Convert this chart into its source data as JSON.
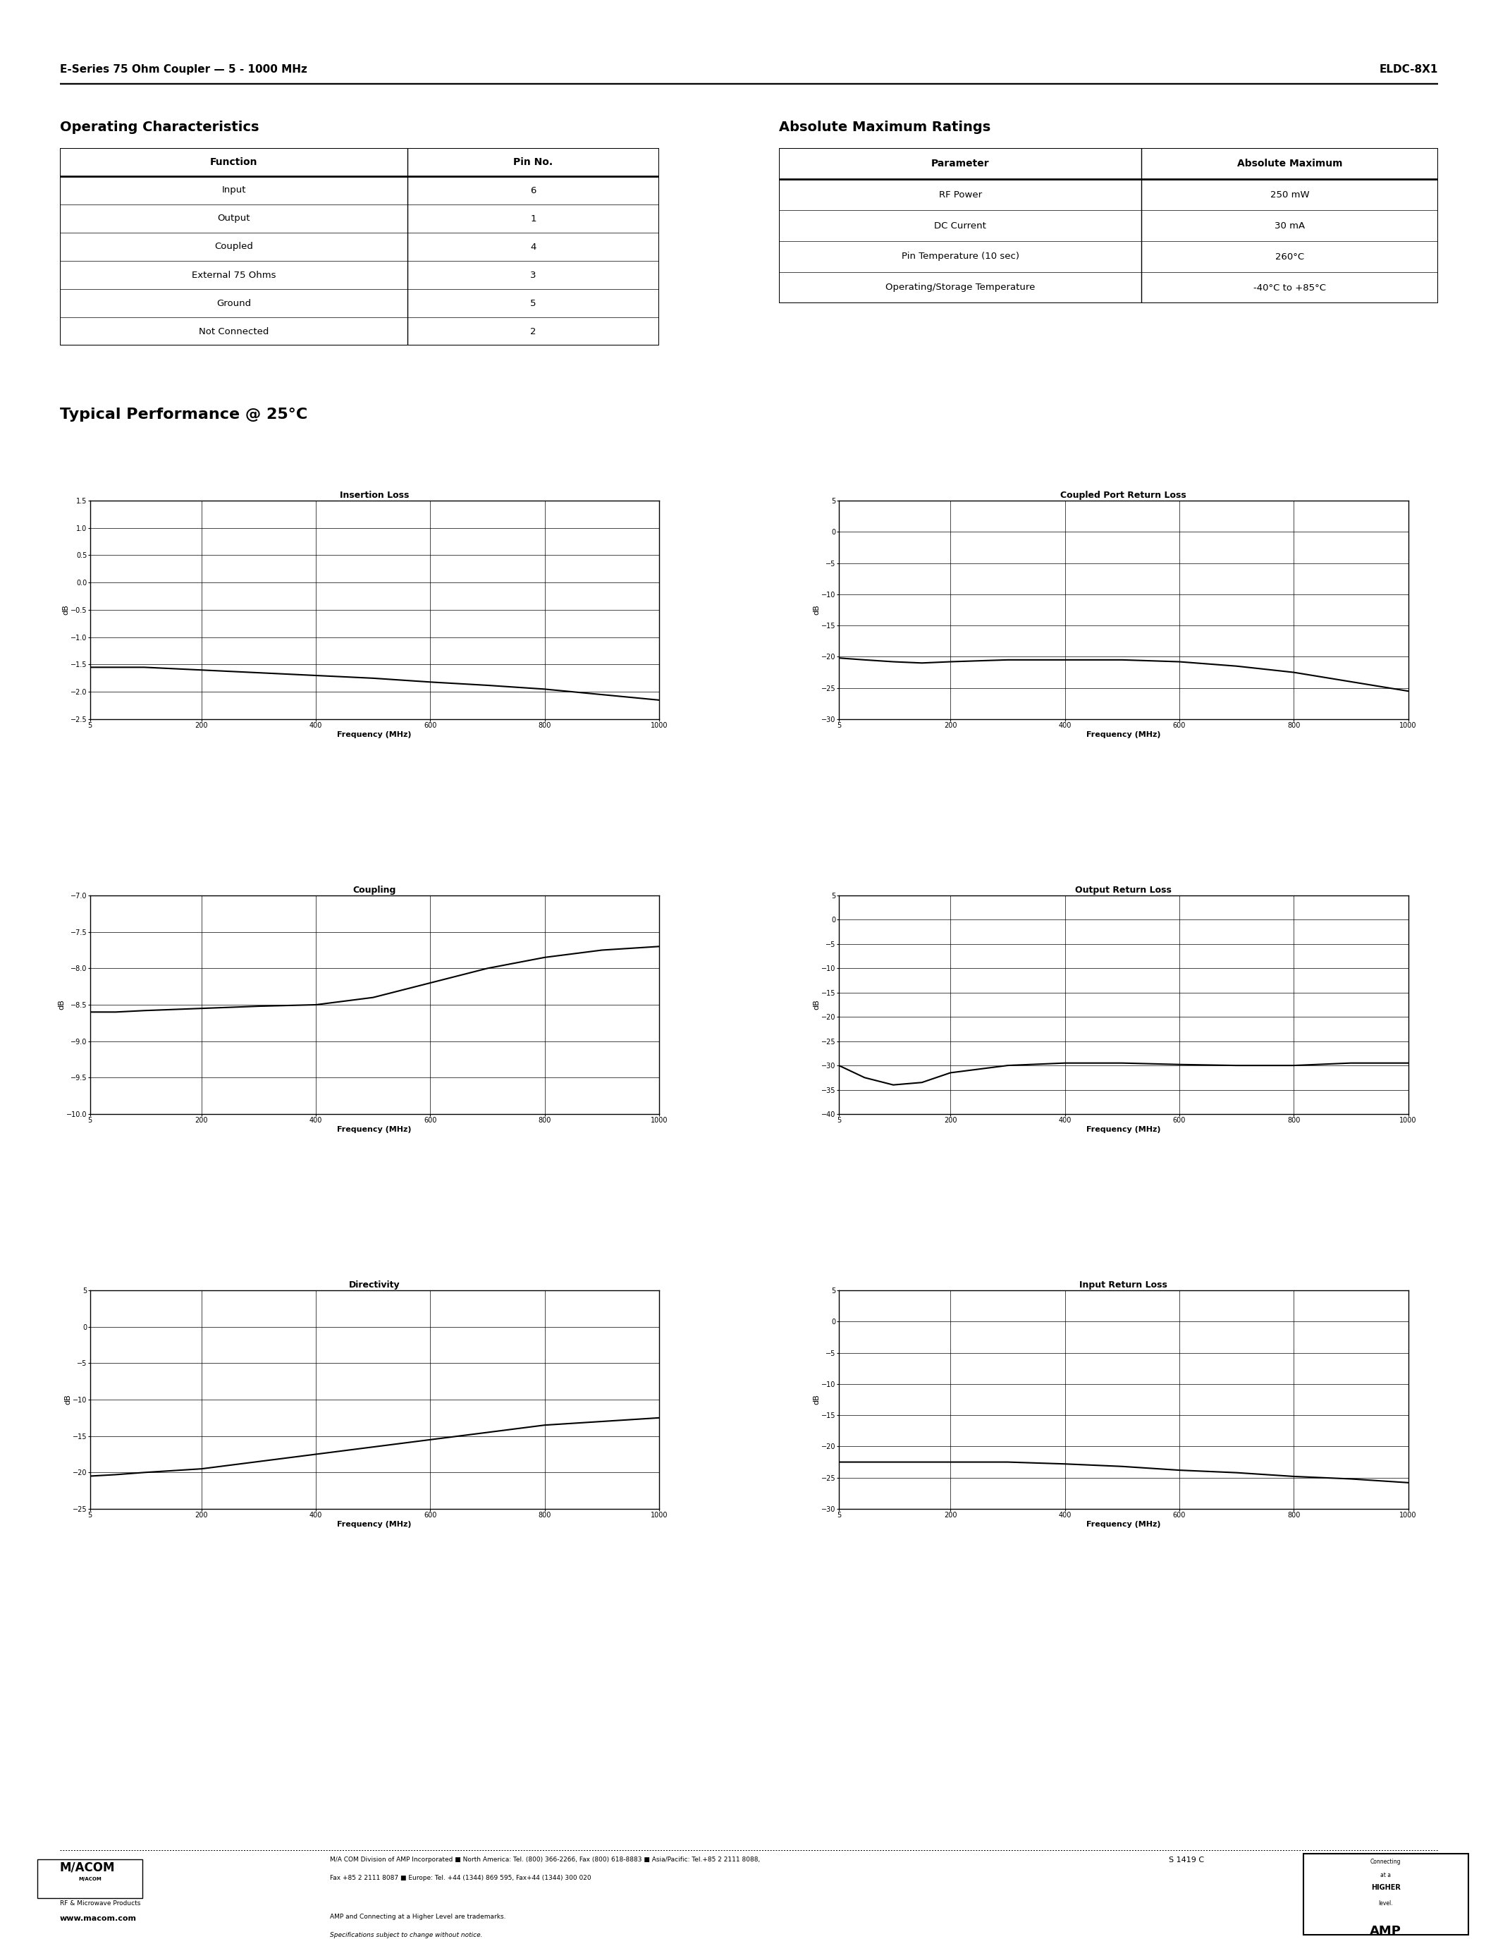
{
  "page_title_left": "E-Series 75 Ohm Coupler — 5 - 1000 MHz",
  "page_title_right": "ELDC-8X1",
  "section1_title": "Operating Characteristics",
  "section2_title": "Absolute Maximum Ratings",
  "typical_perf_title": "Typical Performance @ 25°C",
  "op_char_headers": [
    "Function",
    "Pin No."
  ],
  "op_char_rows": [
    [
      "Input",
      "6"
    ],
    [
      "Output",
      "1"
    ],
    [
      "Coupled",
      "4"
    ],
    [
      "External 75 Ohms",
      "3"
    ],
    [
      "Ground",
      "5"
    ],
    [
      "Not Connected",
      "2"
    ]
  ],
  "abs_max_headers": [
    "Parameter",
    "Absolute Maximum"
  ],
  "abs_max_rows": [
    [
      "RF Power",
      "250 mW"
    ],
    [
      "DC Current",
      "30 mA"
    ],
    [
      "Pin Temperature (10 sec)",
      "260°C"
    ],
    [
      "Operating/Storage Temperature",
      "-40°C to +85°C"
    ]
  ],
  "graphs": [
    {
      "title": "Insertion Loss",
      "ylabel": "dB",
      "xlabel": "Frequency (MHz)",
      "xlim": [
        5,
        1000
      ],
      "ylim": [
        -2.5,
        1.5
      ],
      "yticks": [
        -2.5,
        -2.0,
        -1.5,
        -1.0,
        -0.5,
        0.0,
        0.5,
        1.0,
        1.5
      ],
      "xticks": [
        5,
        200,
        400,
        600,
        800,
        1000
      ],
      "curve_x": [
        5,
        50,
        100,
        200,
        300,
        400,
        500,
        600,
        700,
        800,
        900,
        1000
      ],
      "curve_y": [
        -1.55,
        -1.55,
        -1.55,
        -1.6,
        -1.65,
        -1.7,
        -1.75,
        -1.82,
        -1.88,
        -1.95,
        -2.05,
        -2.15
      ]
    },
    {
      "title": "Coupled Port Return Loss",
      "ylabel": "dB",
      "xlabel": "Frequency (MHz)",
      "xlim": [
        5,
        1000
      ],
      "ylim": [
        -30.0,
        5.0
      ],
      "yticks": [
        -30.0,
        -25.0,
        -20.0,
        -15.0,
        -10.0,
        -5.0,
        0.0,
        5.0
      ],
      "xticks": [
        5,
        200,
        400,
        600,
        800,
        1000
      ],
      "curve_x": [
        5,
        50,
        100,
        150,
        200,
        300,
        400,
        500,
        600,
        700,
        800,
        900,
        1000
      ],
      "curve_y": [
        -20.2,
        -20.5,
        -20.8,
        -21.0,
        -20.8,
        -20.5,
        -20.5,
        -20.5,
        -20.8,
        -21.5,
        -22.5,
        -24.0,
        -25.5
      ]
    },
    {
      "title": "Coupling",
      "ylabel": "dB",
      "xlabel": "Frequency (MHz)",
      "xlim": [
        5,
        1000
      ],
      "ylim": [
        -10.0,
        -7.0
      ],
      "yticks": [
        -10.0,
        -9.5,
        -9.0,
        -8.5,
        -8.0,
        -7.5,
        -7.0
      ],
      "xticks": [
        5,
        200,
        400,
        600,
        800,
        1000
      ],
      "curve_x": [
        5,
        50,
        100,
        200,
        300,
        400,
        500,
        600,
        700,
        800,
        900,
        1000
      ],
      "curve_y": [
        -8.6,
        -8.6,
        -8.58,
        -8.55,
        -8.52,
        -8.5,
        -8.4,
        -8.2,
        -8.0,
        -7.85,
        -7.75,
        -7.7
      ]
    },
    {
      "title": "Output Return Loss",
      "ylabel": "dB",
      "xlabel": "Frequency (MHz)",
      "xlim": [
        5,
        1000
      ],
      "ylim": [
        -40.0,
        5.0
      ],
      "yticks": [
        -40.0,
        -35.0,
        -30.0,
        -25.0,
        -20.0,
        -15.0,
        -10.0,
        -5.0,
        0.0,
        5.0
      ],
      "xticks": [
        5,
        200,
        400,
        600,
        800,
        1000
      ],
      "curve_x": [
        5,
        50,
        100,
        150,
        200,
        300,
        400,
        500,
        600,
        700,
        800,
        900,
        1000
      ],
      "curve_y": [
        -30.0,
        -32.5,
        -34.0,
        -33.5,
        -31.5,
        -30.0,
        -29.5,
        -29.5,
        -29.8,
        -30.0,
        -30.0,
        -29.5,
        -29.5
      ]
    },
    {
      "title": "Directivity",
      "ylabel": "dB",
      "xlabel": "Frequency (MHz)",
      "xlim": [
        5,
        1000
      ],
      "ylim": [
        -25.0,
        5.0
      ],
      "yticks": [
        -25.0,
        -20.0,
        -15.0,
        -10.0,
        -5.0,
        0.0,
        5.0
      ],
      "xticks": [
        5,
        200,
        400,
        600,
        800,
        1000
      ],
      "curve_x": [
        5,
        50,
        100,
        200,
        300,
        400,
        500,
        600,
        700,
        800,
        900,
        1000
      ],
      "curve_y": [
        -20.5,
        -20.3,
        -20.0,
        -19.5,
        -18.5,
        -17.5,
        -16.5,
        -15.5,
        -14.5,
        -13.5,
        -13.0,
        -12.5
      ]
    },
    {
      "title": "Input Return Loss",
      "ylabel": "dB",
      "xlabel": "Frequency (MHz)",
      "xlim": [
        5,
        1000
      ],
      "ylim": [
        -30.0,
        5.0
      ],
      "yticks": [
        -30.0,
        -25.0,
        -20.0,
        -15.0,
        -10.0,
        -5.0,
        0.0,
        5.0
      ],
      "xticks": [
        5,
        200,
        400,
        600,
        800,
        1000
      ],
      "curve_x": [
        5,
        50,
        100,
        200,
        300,
        400,
        500,
        600,
        700,
        800,
        900,
        1000
      ],
      "curve_y": [
        -22.5,
        -22.5,
        -22.5,
        -22.5,
        -22.5,
        -22.8,
        -23.2,
        -23.8,
        -24.2,
        -24.8,
        -25.2,
        -25.8
      ]
    }
  ],
  "footer_logo_text": "M/ACOM",
  "footer_sub_text": "RF & Microwave Products",
  "footer_body1": "M/A COM Division of AMP Incorporated ■ North America: Tel. (800) 366-2266, Fax (800) 618-8883 ■ Asia/Pacific: Tel.+85 2 2111 8088,",
  "footer_body2": "Fax +85 2 2111 8087 ■ Europe: Tel. +44 (1344) 869 595, Fax+44 (1344) 300 020",
  "footer_web": "www.macom.com",
  "footer_trademark": "AMP and Connecting at a Higher Level are trademarks.",
  "footer_spec": "Specifications subject to change without notice.",
  "footer_amp_text": "AMP",
  "footer_connecting": "Connecting\nat a\nHIGHER\nlevel.",
  "catalog_num": "S 1419 C",
  "bg_color": "#ffffff",
  "text_color": "#000000"
}
